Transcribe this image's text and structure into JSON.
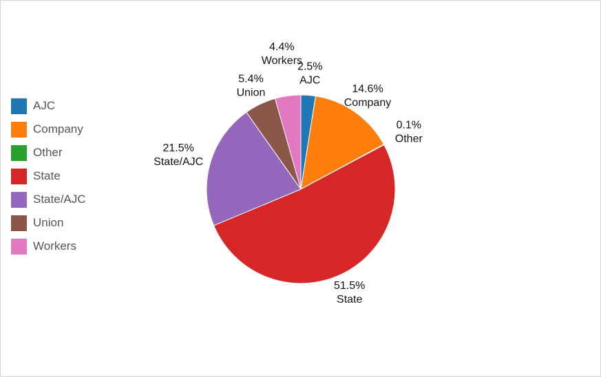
{
  "chart_data": {
    "type": "pie",
    "title": "",
    "legend_position": "left",
    "slices": [
      {
        "label": "AJC",
        "pct_label": "2.5%",
        "value": 2.5,
        "color": "#1f77b4"
      },
      {
        "label": "Company",
        "pct_label": "14.6%",
        "value": 14.6,
        "color": "#ff7f0e"
      },
      {
        "label": "Other",
        "pct_label": "0.1%",
        "value": 0.1,
        "color": "#2ca02c"
      },
      {
        "label": "State",
        "pct_label": "51.5%",
        "value": 51.5,
        "color": "#d62728"
      },
      {
        "label": "State/AJC",
        "pct_label": "21.5%",
        "value": 21.5,
        "color": "#9467bd"
      },
      {
        "label": "Union",
        "pct_label": "5.4%",
        "value": 5.4,
        "color": "#8c564b"
      },
      {
        "label": "Workers",
        "pct_label": "4.4%",
        "value": 4.4,
        "color": "#e377c2"
      }
    ]
  }
}
